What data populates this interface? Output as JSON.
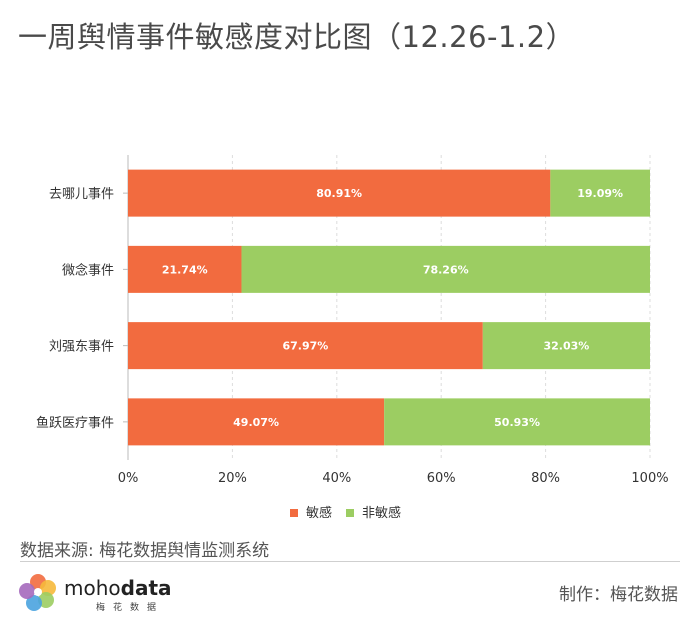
{
  "title": "一周舆情事件敏感度对比图（12.26-1.2）",
  "chart_data": {
    "type": "bar",
    "orientation": "horizontal",
    "stacked": true,
    "categories": [
      "去哪儿事件",
      "微念事件",
      "刘强东事件",
      "鱼跃医疗事件"
    ],
    "series": [
      {
        "name": "敏感",
        "color": "#f26b3f",
        "values": [
          80.91,
          21.74,
          67.97,
          49.07
        ],
        "labels": [
          "80.91%",
          "21.74%",
          "67.97%",
          "49.07%"
        ]
      },
      {
        "name": "非敏感",
        "color": "#9ccd62",
        "values": [
          19.09,
          78.26,
          32.03,
          50.93
        ],
        "labels": [
          "19.09%",
          "78.26%",
          "32.03%",
          "50.93%"
        ]
      }
    ],
    "xlim": [
      0,
      100
    ],
    "x_ticks": [
      "0%",
      "20%",
      "40%",
      "60%",
      "80%",
      "100%"
    ],
    "grid": true,
    "legend_position": "bottom"
  },
  "footer": {
    "source": "数据来源: 梅花数据舆情监测系统",
    "maker": "制作：梅花数据",
    "logo_text_light": "moho",
    "logo_text_bold": "data",
    "logo_sub": "梅花数据"
  }
}
